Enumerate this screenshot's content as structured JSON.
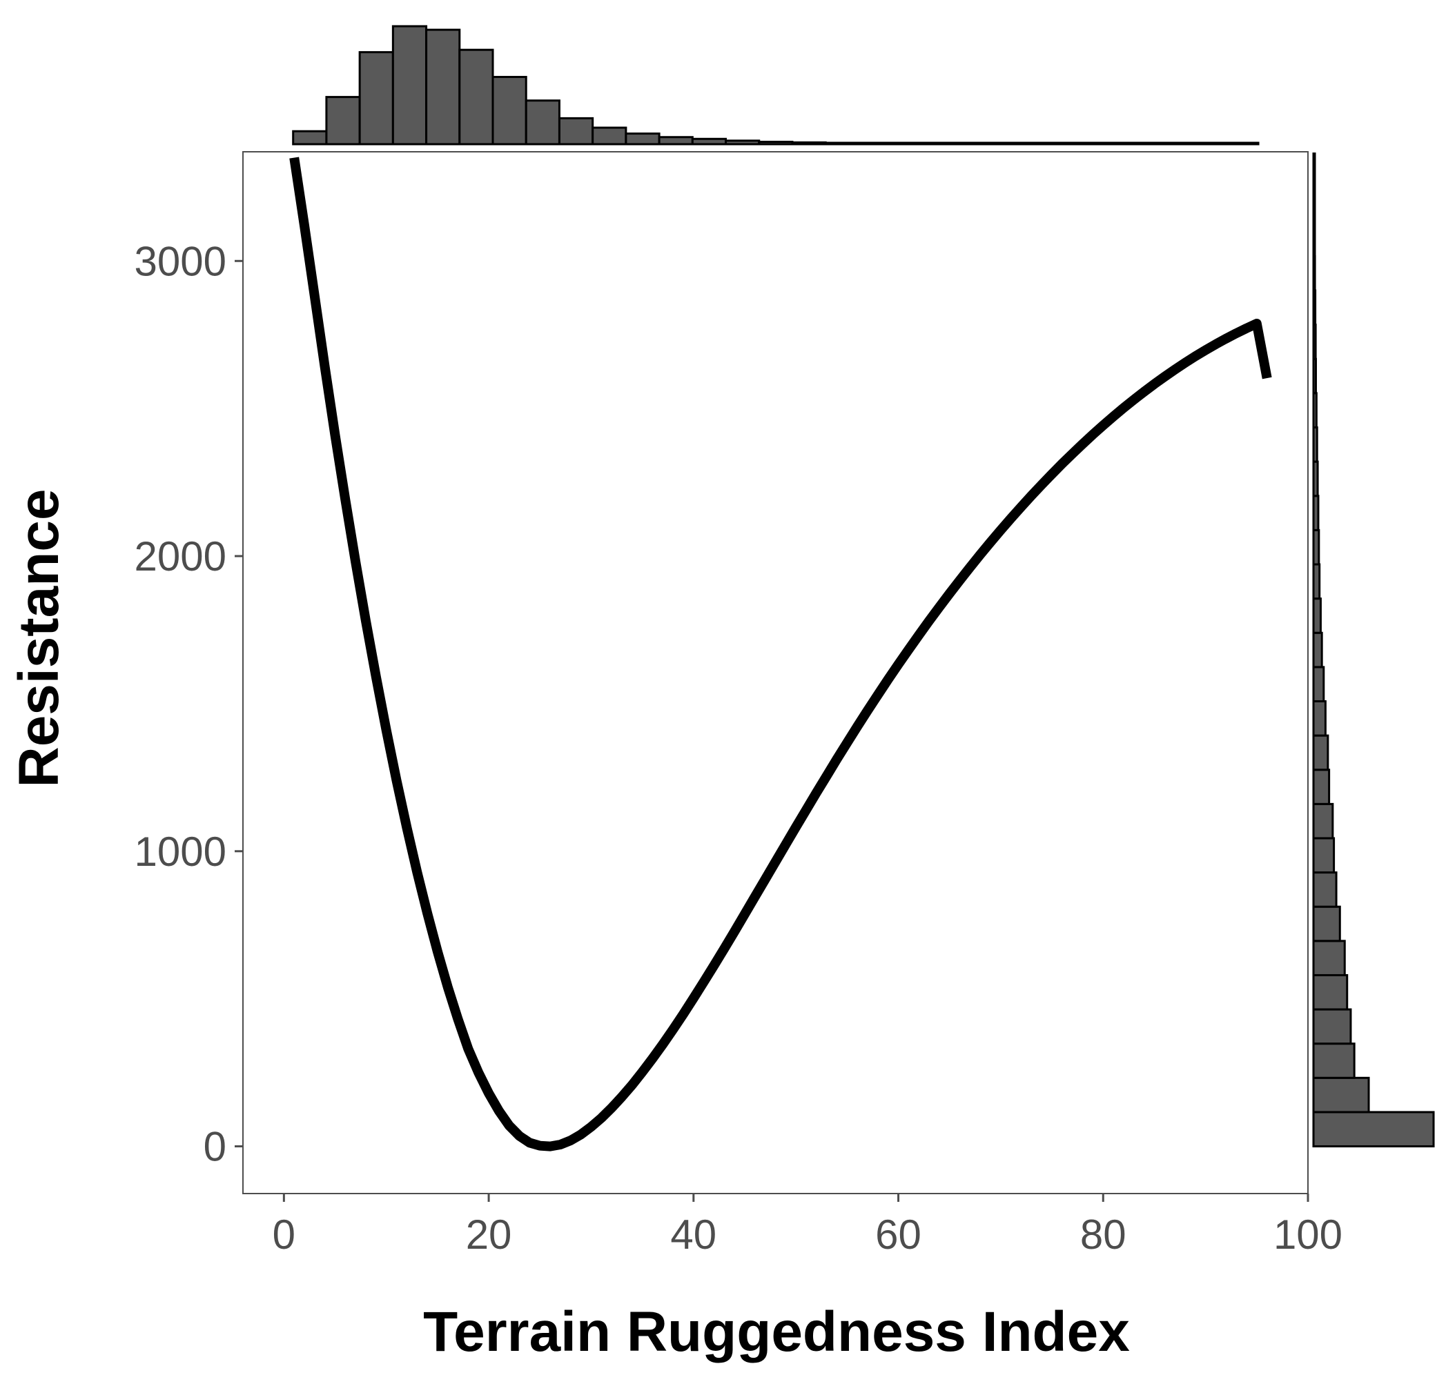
{
  "chart_data": {
    "type": "line",
    "title": "",
    "xlabel": "Terrain Ruggedness Index",
    "ylabel": "Resistance",
    "xlim": [
      -4,
      100
    ],
    "ylim": [
      -160,
      3370
    ],
    "x_ticks": [
      "0",
      "20",
      "40",
      "60",
      "80",
      "100"
    ],
    "y_ticks": [
      "0",
      "1000",
      "2000",
      "3000"
    ],
    "grid": false,
    "series": [
      {
        "style": "line",
        "color": "#000000",
        "x": [
          1,
          2,
          3,
          4,
          5,
          6,
          7,
          8,
          9,
          10,
          11,
          12,
          13,
          14,
          15,
          16,
          17,
          18,
          19,
          20,
          21,
          22,
          23,
          24,
          25,
          26,
          27,
          28,
          29,
          30,
          31,
          32,
          33,
          34,
          35,
          36,
          37,
          38,
          39,
          40,
          41,
          42,
          43,
          44,
          45,
          46,
          47,
          48,
          49,
          50,
          51,
          52,
          53,
          54,
          55,
          56,
          57,
          58,
          59,
          60,
          61,
          62,
          63,
          64,
          65,
          66,
          67,
          68,
          69,
          70,
          71,
          72,
          73,
          74,
          75,
          76,
          77,
          78,
          79,
          80,
          81,
          82,
          83,
          84,
          85,
          86,
          87,
          88,
          89,
          90,
          91,
          92,
          93,
          94,
          95,
          96
        ],
        "y": [
          3350,
          3120,
          2880,
          2640,
          2410,
          2190,
          1980,
          1780,
          1590,
          1410,
          1240,
          1080,
          930,
          790,
          660,
          540,
          430,
          330,
          250,
          180,
          120,
          70,
          35,
          12,
          2,
          0,
          6,
          20,
          40,
          66,
          96,
          130,
          168,
          208,
          252,
          298,
          346,
          396,
          448,
          502,
          557,
          613,
          670,
          728,
          787,
          846,
          905,
          964,
          1023,
          1082,
          1140,
          1198,
          1255,
          1312,
          1368,
          1423,
          1477,
          1530,
          1582,
          1633,
          1683,
          1732,
          1780,
          1827,
          1873,
          1918,
          1962,
          2005,
          2047,
          2088,
          2128,
          2167,
          2205,
          2242,
          2278,
          2313,
          2347,
          2380,
          2412,
          2443,
          2473,
          2502,
          2530,
          2557,
          2583,
          2608,
          2632,
          2655,
          2677,
          2698,
          2718,
          2737,
          2755,
          2772,
          2788,
          2603
        ]
      }
    ],
    "top_histogram": {
      "variable": "Terrain Ruggedness Index",
      "bin_edges": [
        0.9,
        4.15,
        7.4,
        10.65,
        13.9,
        17.15,
        20.4,
        23.65,
        26.9,
        30.15,
        33.4,
        36.65,
        39.9,
        43.15,
        46.4,
        49.65,
        52.9,
        56.15,
        59.4,
        62.65,
        65.9,
        69.15,
        72.4,
        75.65,
        78.9,
        82.15,
        85.4,
        88.65,
        91.9,
        95.15
      ],
      "relative_counts": [
        0.11,
        0.4,
        0.78,
        1.0,
        0.97,
        0.8,
        0.57,
        0.37,
        0.22,
        0.14,
        0.09,
        0.06,
        0.045,
        0.03,
        0.02,
        0.015,
        0.01,
        0.008,
        0.006,
        0.005,
        0.004,
        0.003,
        0.003,
        0.002,
        0.002,
        0.002,
        0.001,
        0.001,
        0.001
      ],
      "fill": "#595959",
      "stroke": "#000000"
    },
    "right_histogram": {
      "variable": "Resistance",
      "bin_edges": [
        0,
        116,
        232,
        348,
        464,
        580,
        696,
        812,
        928,
        1044,
        1160,
        1276,
        1392,
        1508,
        1624,
        1740,
        1856,
        1972,
        2088,
        2204,
        2320,
        2436,
        2552,
        2668,
        2784,
        2900,
        3016,
        3132,
        3248,
        3364
      ],
      "relative_counts": [
        1.0,
        0.46,
        0.34,
        0.31,
        0.28,
        0.26,
        0.22,
        0.19,
        0.17,
        0.16,
        0.13,
        0.12,
        0.1,
        0.085,
        0.07,
        0.06,
        0.05,
        0.045,
        0.04,
        0.035,
        0.03,
        0.025,
        0.02,
        0.018,
        0.015,
        0.012,
        0.01,
        0.008,
        0.006
      ],
      "fill": "#595959",
      "stroke": "#000000"
    }
  }
}
